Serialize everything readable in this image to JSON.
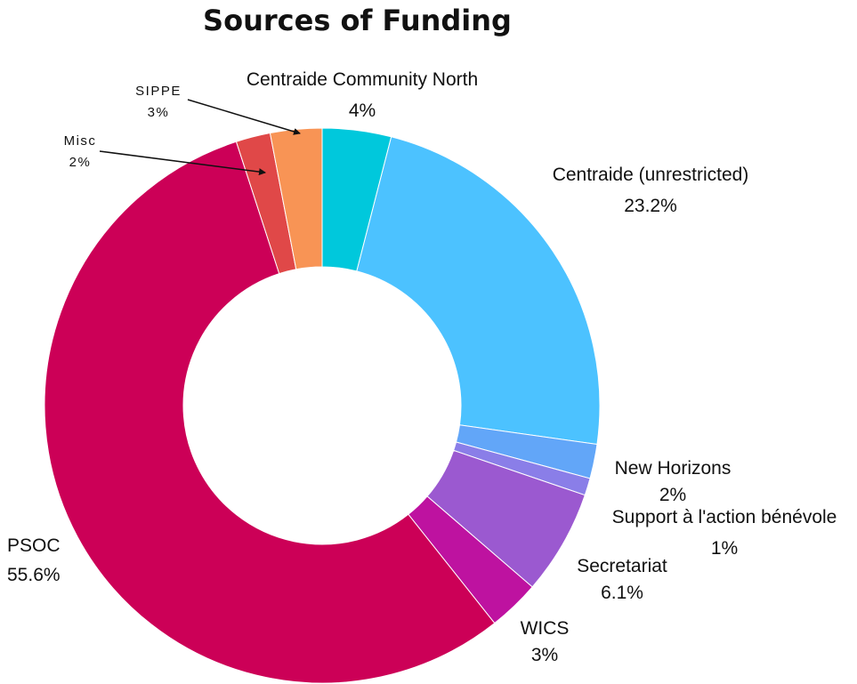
{
  "chart_data": {
    "type": "pie",
    "title": "Sources of Funding",
    "donut": true,
    "slices": [
      {
        "name": "Centraide Community North",
        "value": 4,
        "label": "4%",
        "color": "#00C8DC"
      },
      {
        "name": "Centraide (unrestricted)",
        "value": 23.2,
        "label": "23.2%",
        "color": "#4CC2FF"
      },
      {
        "name": "New Horizons",
        "value": 2,
        "label": "2%",
        "color": "#62A6F8"
      },
      {
        "name": "Support à l'action bénévole",
        "value": 1,
        "label": "1%",
        "color": "#8A7EE8"
      },
      {
        "name": "Secretariat",
        "value": 6.1,
        "label": "6.1%",
        "color": "#9B59D0"
      },
      {
        "name": "WICS",
        "value": 3,
        "label": "3%",
        "color": "#BE12A0"
      },
      {
        "name": "PSOC",
        "value": 55.6,
        "label": "55.6%",
        "color": "#CC0057"
      },
      {
        "name": "Misc",
        "value": 2,
        "label": "2%",
        "color": "#E04848"
      },
      {
        "name": "SIPPE",
        "value": 3,
        "label": "3%",
        "color": "#F89455"
      }
    ]
  }
}
